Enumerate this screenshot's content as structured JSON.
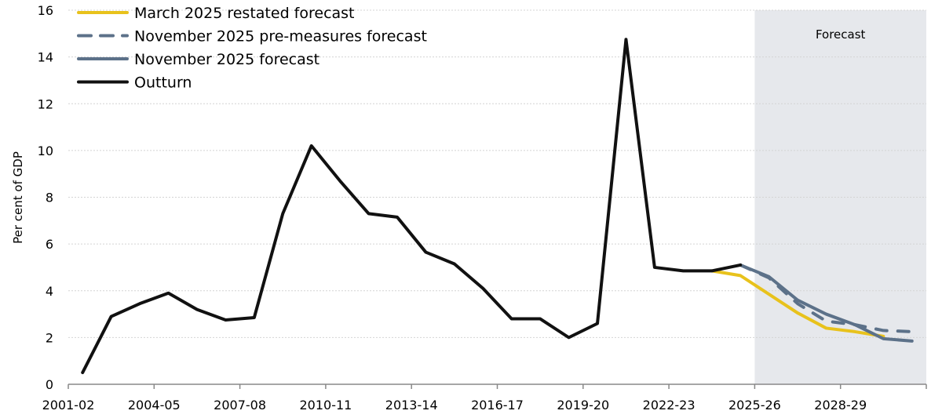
{
  "chart_data": {
    "type": "line",
    "ylabel": "Per cent of GDP",
    "ylim": [
      0,
      16
    ],
    "yticks": [
      0,
      2,
      4,
      6,
      8,
      10,
      12,
      14,
      16
    ],
    "grid": true,
    "legend_position": "top-left",
    "shaded_region": {
      "label": "Forecast",
      "from": "2025-26",
      "to": "2030-31",
      "color": "#e6e8ec"
    },
    "categories": [
      "2001-02",
      "2002-03",
      "2003-04",
      "2004-05",
      "2005-06",
      "2006-07",
      "2007-08",
      "2008-09",
      "2009-10",
      "2010-11",
      "2011-12",
      "2012-13",
      "2013-14",
      "2014-15",
      "2015-16",
      "2016-17",
      "2017-18",
      "2018-19",
      "2019-20",
      "2020-21",
      "2021-22",
      "2022-23",
      "2023-24",
      "2024-25",
      "2025-26",
      "2026-27",
      "2027-28",
      "2028-29",
      "2029-30",
      "2030-31"
    ],
    "xtick_labels": [
      "2001-02",
      "2004-05",
      "2007-08",
      "2010-11",
      "2013-14",
      "2016-17",
      "2019-20",
      "2022-23",
      "2025-26",
      "2028-29"
    ],
    "series": [
      {
        "name": "March 2025 restated forecast",
        "color": "#e8c21c",
        "dash": false,
        "values": [
          null,
          null,
          null,
          null,
          null,
          null,
          null,
          null,
          null,
          null,
          null,
          null,
          null,
          null,
          null,
          null,
          null,
          null,
          null,
          null,
          null,
          null,
          4.85,
          4.65,
          3.85,
          3.05,
          2.4,
          2.25,
          2.05,
          null
        ]
      },
      {
        "name": "November 2025 pre-measures forecast",
        "color": "#5c7189",
        "dash": true,
        "values": [
          null,
          null,
          null,
          null,
          null,
          null,
          null,
          null,
          null,
          null,
          null,
          null,
          null,
          null,
          null,
          null,
          null,
          null,
          null,
          null,
          null,
          null,
          null,
          5.1,
          4.55,
          3.45,
          2.7,
          2.55,
          2.3,
          2.25
        ]
      },
      {
        "name": "November 2025 forecast",
        "color": "#5c7189",
        "dash": false,
        "values": [
          null,
          null,
          null,
          null,
          null,
          null,
          null,
          null,
          null,
          null,
          null,
          null,
          null,
          null,
          null,
          null,
          null,
          null,
          null,
          null,
          null,
          null,
          null,
          5.1,
          4.6,
          3.6,
          3.0,
          2.55,
          1.95,
          1.85
        ]
      },
      {
        "name": "Outturn",
        "color": "#111111",
        "dash": false,
        "values": [
          0.5,
          2.9,
          3.45,
          3.9,
          3.2,
          2.75,
          2.85,
          7.3,
          10.2,
          8.7,
          7.3,
          7.15,
          5.65,
          5.15,
          4.1,
          2.8,
          2.8,
          2.0,
          2.6,
          14.75,
          5.0,
          4.85,
          4.85,
          5.1,
          null,
          null,
          null,
          null,
          null,
          null
        ]
      }
    ]
  }
}
